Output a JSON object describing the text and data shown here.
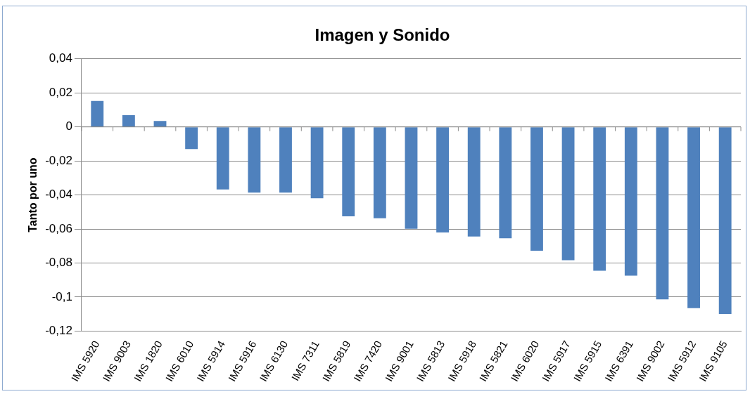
{
  "chart_data": {
    "type": "bar",
    "title": "Imagen y Sonido",
    "ylabel": "Tanto por uno",
    "categories": [
      "IMS 5920",
      "IMS 9003",
      "IMS 1820",
      "IMS 6010",
      "IMS 5914",
      "IMS 5916",
      "IMS 6130",
      "IMS 7311",
      "IMS 5819",
      "IMS 7420",
      "IMS 9001",
      "IMS 5813",
      "IMS 5918",
      "IMS 5821",
      "IMS 6020",
      "IMS 5917",
      "IMS 5915",
      "IMS 6391",
      "IMS 9002",
      "IMS 5912",
      "IMS 9105"
    ],
    "values": [
      0.0153,
      0.0069,
      0.0035,
      -0.013,
      -0.0368,
      -0.0386,
      -0.0386,
      -0.0419,
      -0.0525,
      -0.0537,
      -0.0599,
      -0.062,
      -0.0644,
      -0.0655,
      -0.0728,
      -0.0784,
      -0.0845,
      -0.0874,
      -0.1014,
      -0.1065,
      -0.1099
    ],
    "color": "#4f81bd",
    "ylim": [
      -0.12,
      0.04
    ],
    "yticks": [
      {
        "value": 0.04,
        "label": "0,04"
      },
      {
        "value": 0.02,
        "label": "0,02"
      },
      0,
      {
        "value": -0.02,
        "label": "-0,02"
      },
      {
        "value": -0.04,
        "label": "-0,04"
      },
      {
        "value": -0.06,
        "label": "-0,06"
      },
      {
        "value": -0.08,
        "label": "-0,08"
      },
      {
        "value": -0.1,
        "label": "-0,1"
      },
      {
        "value": -0.12,
        "label": "-0,12"
      }
    ],
    "grid": "y",
    "legend": false
  }
}
